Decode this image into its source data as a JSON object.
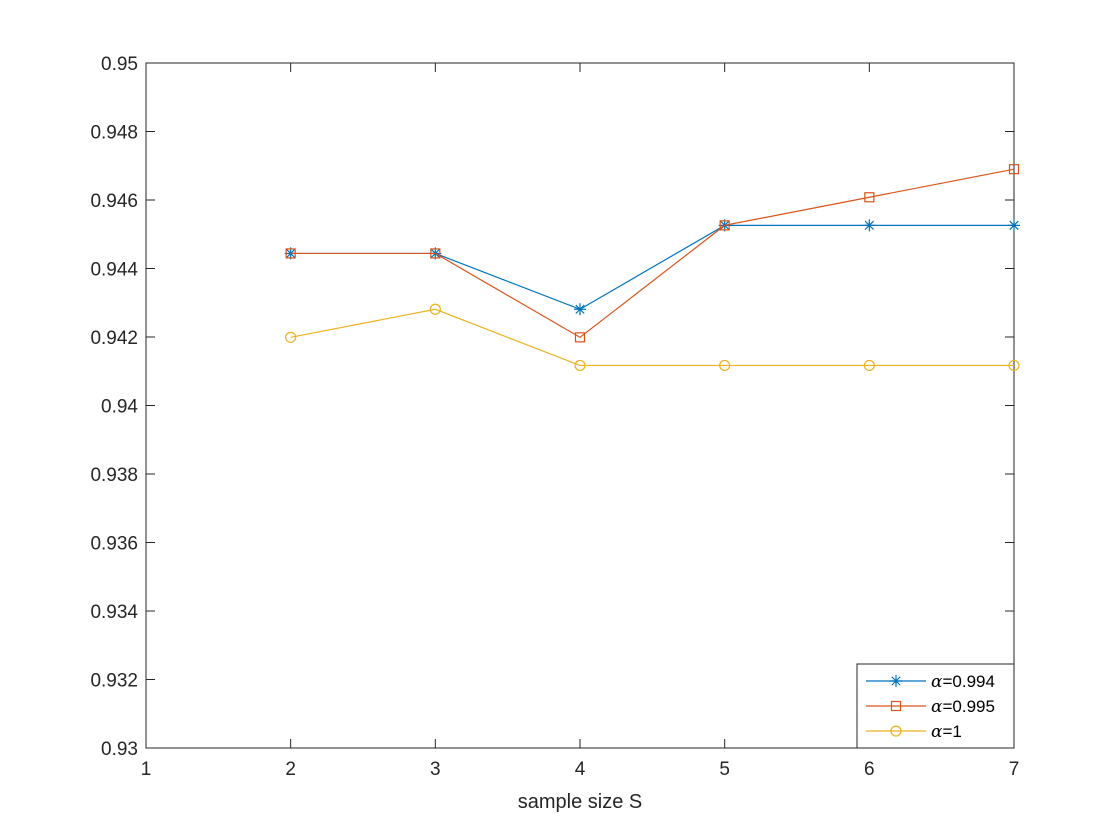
{
  "chart_data": {
    "type": "line",
    "title": "",
    "xlabel": "sample size S",
    "ylabel": "",
    "xlim": [
      1,
      7
    ],
    "ylim": [
      0.93,
      0.95
    ],
    "xticks": [
      1,
      2,
      3,
      4,
      5,
      6,
      7
    ],
    "xtick_labels": [
      "1",
      "2",
      "3",
      "4",
      "5",
      "6",
      "7"
    ],
    "yticks": [
      0.93,
      0.932,
      0.934,
      0.936,
      0.938,
      0.94,
      0.942,
      0.944,
      0.946,
      0.948,
      0.95
    ],
    "ytick_labels": [
      "0.93",
      "0.932",
      "0.934",
      "0.936",
      "0.938",
      "0.94",
      "0.942",
      "0.944",
      "0.946",
      "0.948",
      "0.95"
    ],
    "grid": false,
    "legend_position": "bottom-right",
    "x": [
      2,
      3,
      4,
      5,
      6,
      7
    ],
    "series": [
      {
        "name": "α=0.994",
        "name_symbol": "α",
        "name_rest": "=0.994",
        "marker": "asterisk",
        "color": "#0072BD",
        "values": [
          0.94444,
          0.94444,
          0.94281,
          0.94526,
          0.94526,
          0.94526
        ]
      },
      {
        "name": "α=0.995",
        "name_symbol": "α",
        "name_rest": "=0.995",
        "marker": "square",
        "color": "#D95319",
        "values": [
          0.94444,
          0.94444,
          0.94199,
          0.94526,
          0.94608,
          0.9469
        ]
      },
      {
        "name": "α=1",
        "name_symbol": "α",
        "name_rest": "=1",
        "marker": "circle",
        "color": "#EDB120",
        "values": [
          0.94199,
          0.94281,
          0.94117,
          0.94117,
          0.94117,
          0.94117
        ]
      }
    ]
  }
}
